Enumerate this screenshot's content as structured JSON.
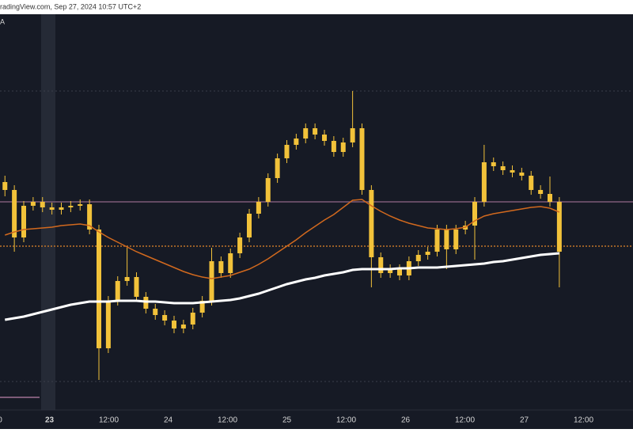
{
  "chart_data": {
    "type": "candlestick",
    "header": "radingView.com, Sep 27, 2024 10:57 UTC+2",
    "indicator_label": "A",
    "xlim": [
      -10,
      118
    ],
    "ylim": [
      0,
      500
    ],
    "xticks": [
      {
        "value": -10,
        "label": "0"
      },
      0,
      {
        "value": 0,
        "label": "23"
      },
      {
        "value": 12,
        "label": "12:00"
      },
      {
        "value": 24,
        "label": "24"
      },
      {
        "value": 36,
        "label": "12:00"
      },
      {
        "value": 48,
        "label": "25"
      },
      {
        "value": 60,
        "label": "12:00"
      },
      {
        "value": 72,
        "label": "26"
      },
      {
        "value": 84,
        "label": "12:00"
      },
      {
        "value": 96,
        "label": "27"
      },
      {
        "value": 108,
        "label": "12:00"
      }
    ],
    "grid_levels": [
      403,
      36
    ],
    "levels": [
      {
        "value": 263,
        "color": "#7d5b78",
        "dash": false
      },
      {
        "value": 207,
        "color": "#c0742a",
        "dash": true
      }
    ],
    "color": "#f2c23a",
    "x": [
      -9,
      -7.1,
      -5.2,
      -3.3,
      -1.4,
      0.5,
      2.4,
      4.3,
      6.2,
      8.1,
      10,
      11.9,
      13.8,
      15.7,
      17.6,
      19.5,
      21.4,
      23.3,
      25.2,
      27.1,
      29,
      30.9,
      32.8,
      34.7,
      36.6,
      38.5,
      40.4,
      42.3,
      44.2,
      46.1,
      48,
      49.9,
      51.8,
      53.7,
      55.6,
      57.5,
      59.4,
      61.3,
      63.2,
      65.1,
      67,
      68.9,
      70.8,
      72.7,
      74.6,
      76.5,
      78.4,
      80.3,
      82.2,
      84.1,
      86,
      87.9,
      89.8,
      91.7,
      93.6,
      95.5,
      97.4,
      99.3,
      101.2,
      103.1
    ],
    "open": [
      288,
      278,
      218,
      258,
      263,
      256,
      253,
      256,
      258,
      260,
      228,
      78,
      138,
      163,
      168,
      143,
      128,
      120,
      113,
      103,
      108,
      123,
      138,
      188,
      173,
      198,
      218,
      248,
      263,
      293,
      318,
      335,
      343,
      356,
      348,
      340,
      326,
      338,
      356,
      278,
      193,
      173,
      178,
      170,
      188,
      196,
      200,
      228,
      203,
      228,
      233,
      263,
      313,
      308,
      303,
      300,
      296,
      278,
      273,
      263
    ],
    "high": [
      296,
      284,
      264,
      269,
      269,
      262,
      262,
      264,
      266,
      266,
      234,
      144,
      169,
      205,
      174,
      149,
      134,
      126,
      119,
      114,
      129,
      144,
      205,
      194,
      204,
      224,
      254,
      269,
      299,
      324,
      341,
      349,
      362,
      362,
      354,
      346,
      344,
      403,
      362,
      284,
      199,
      184,
      184,
      194,
      202,
      206,
      234,
      234,
      234,
      239,
      269,
      335,
      319,
      314,
      309,
      306,
      302,
      284,
      295,
      269
    ],
    "low": [
      270,
      200,
      212,
      252,
      250,
      247,
      247,
      250,
      252,
      222,
      38,
      72,
      132,
      157,
      137,
      122,
      114,
      107,
      97,
      97,
      102,
      117,
      132,
      167,
      167,
      192,
      212,
      242,
      257,
      287,
      312,
      329,
      337,
      342,
      334,
      320,
      320,
      332,
      272,
      155,
      167,
      167,
      164,
      164,
      182,
      190,
      194,
      178,
      197,
      222,
      190,
      257,
      302,
      297,
      294,
      290,
      272,
      267,
      257,
      155
    ],
    "close": [
      278,
      218,
      258,
      263,
      256,
      253,
      256,
      258,
      260,
      228,
      78,
      138,
      163,
      168,
      143,
      128,
      120,
      113,
      103,
      108,
      123,
      138,
      188,
      173,
      198,
      218,
      248,
      263,
      293,
      318,
      335,
      343,
      356,
      348,
      340,
      326,
      338,
      356,
      278,
      193,
      173,
      178,
      170,
      188,
      196,
      200,
      228,
      203,
      228,
      233,
      263,
      313,
      308,
      303,
      300,
      296,
      278,
      273,
      263,
      200
    ],
    "lines": [
      {
        "color": "#d2691e",
        "width": 1.5,
        "values": [
          221,
          225,
          228,
          229,
          230,
          231,
          233,
          234,
          235,
          233,
          225,
          218,
          212,
          206,
          200,
          195,
          190,
          185,
          180,
          175,
          171,
          168,
          166,
          168,
          170,
          174,
          178,
          184,
          191,
          199,
          207,
          215,
          224,
          232,
          240,
          247,
          256,
          265,
          266,
          258,
          251,
          245,
          240,
          236,
          233,
          230,
          229,
          228,
          229,
          231,
          239,
          245,
          248,
          250,
          252,
          254,
          256,
          257,
          255,
          250
        ]
      },
      {
        "color": "#ffffff",
        "width": 3,
        "values": [
          114,
          116,
          118,
          121,
          124,
          127,
          130,
          133,
          135,
          137,
          137,
          137,
          138,
          138,
          138,
          137,
          137,
          136,
          135,
          135,
          135,
          136,
          137,
          138,
          139,
          141,
          144,
          147,
          151,
          155,
          159,
          162,
          165,
          167,
          170,
          172,
          174,
          177,
          178,
          178,
          178,
          178,
          179,
          179,
          180,
          180,
          180,
          181,
          182,
          183,
          184,
          185,
          187,
          188,
          190,
          192,
          194,
          196,
          197,
          198
        ]
      }
    ]
  }
}
